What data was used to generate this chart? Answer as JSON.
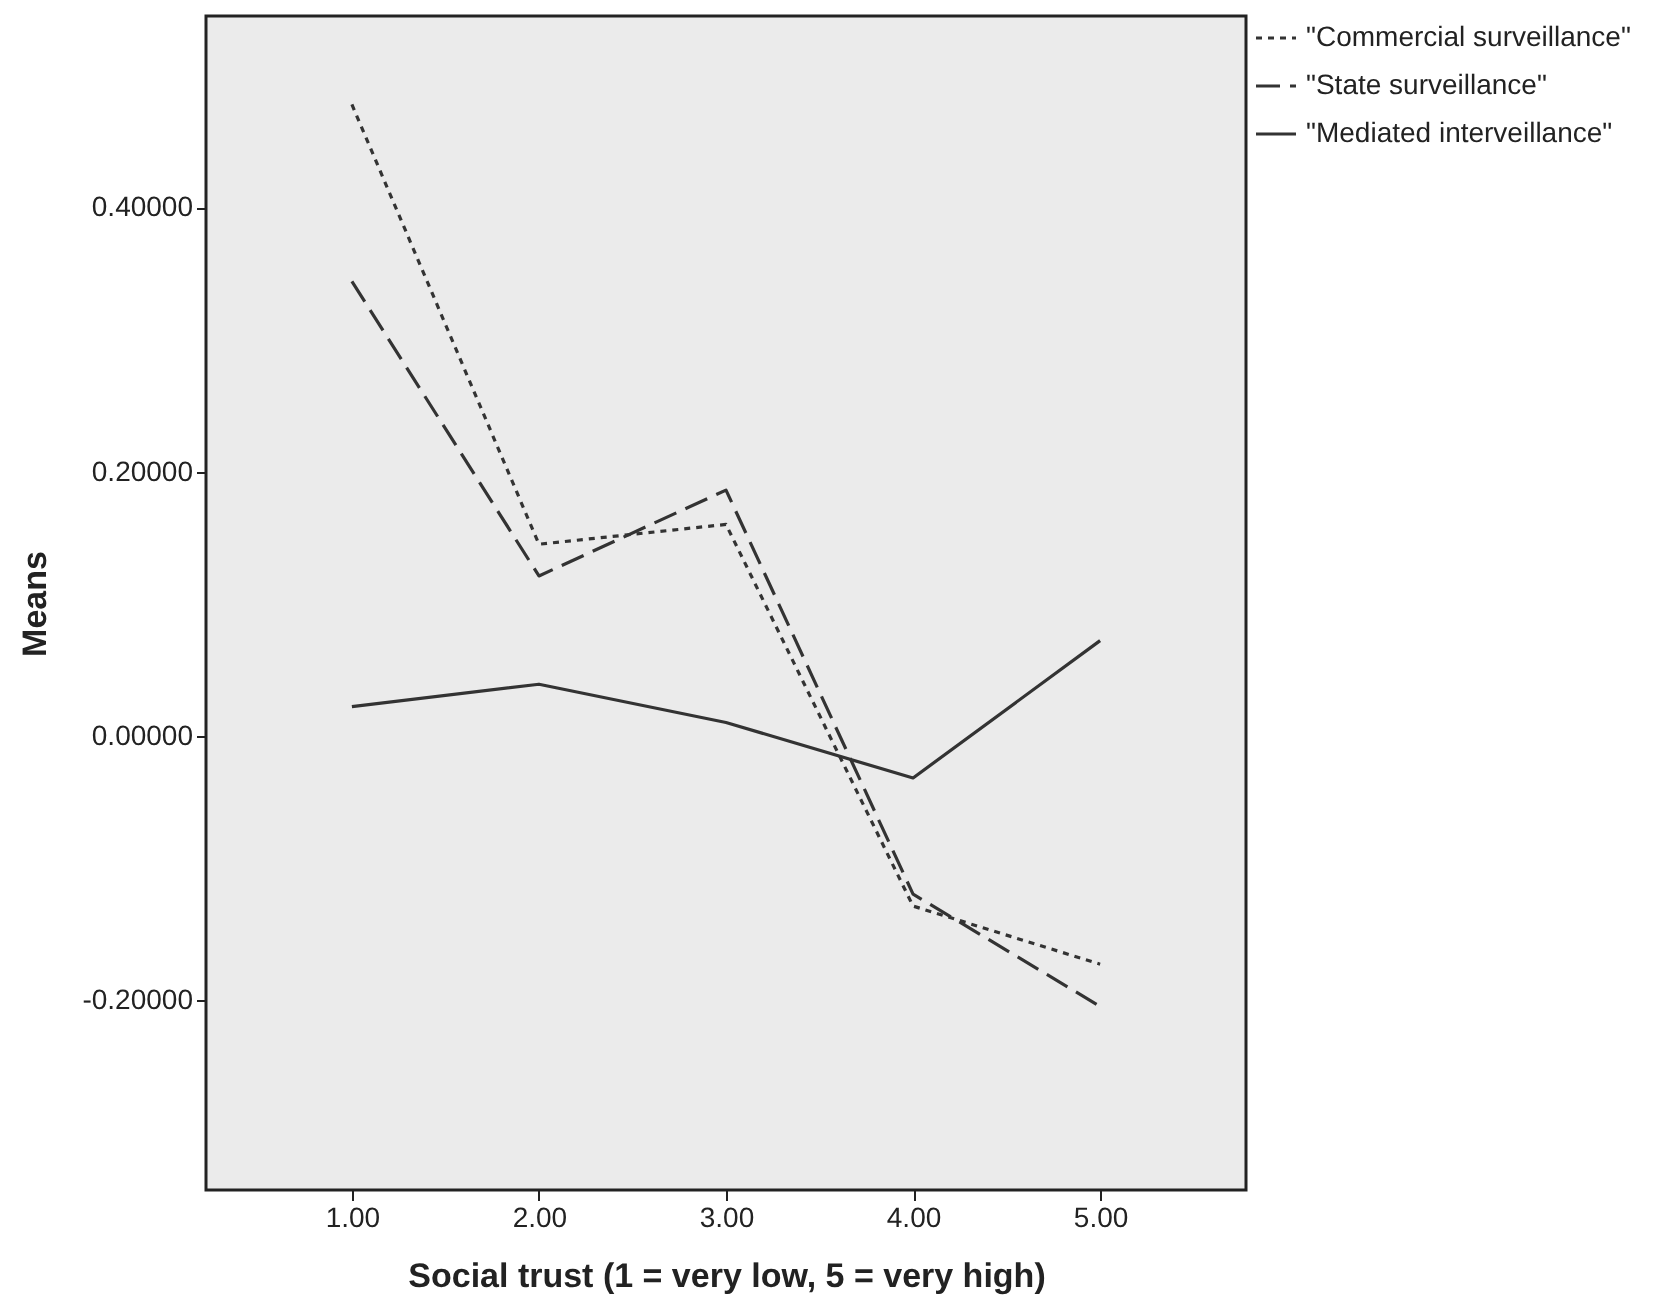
{
  "chart_data": {
    "type": "line",
    "xlabel": "Social trust (1 = very low, 5 = very high)",
    "ylabel": "Means",
    "x": [
      1,
      2,
      3,
      4,
      5
    ],
    "series": [
      {
        "name": "\"Commercial surveillance\"",
        "color": "#333333",
        "line_style": "dotted",
        "values": [
          0.478,
          0.145,
          0.16,
          -0.129,
          -0.173
        ]
      },
      {
        "name": "\"State surveillance\"",
        "color": "#333333",
        "line_style": "dashed",
        "values": [
          0.344,
          0.121,
          0.186,
          -0.12,
          -0.205
        ]
      },
      {
        "name": "\"Mediated interveillance\"",
        "color": "#333333",
        "line_style": "solid",
        "values": [
          0.022,
          0.039,
          0.01,
          -0.032,
          0.072
        ]
      }
    ],
    "xlim": [
      0.22,
      5.78
    ],
    "xticks": [
      {
        "value": 1,
        "label": "1.00"
      },
      {
        "value": 2,
        "label": "2.00"
      },
      {
        "value": 3,
        "label": "3.00"
      },
      {
        "value": 4,
        "label": "4.00"
      },
      {
        "value": 5,
        "label": "5.00"
      }
    ],
    "ylim": [
      -0.344,
      0.545
    ],
    "yticks": [
      {
        "value": -0.2,
        "label": "-0.20000"
      },
      {
        "value": 0,
        "label": "0.00000"
      },
      {
        "value": 0.2,
        "label": "0.20000"
      },
      {
        "value": 0.4,
        "label": "0.40000"
      }
    ],
    "grid": false,
    "legend": "top right",
    "marker": "none"
  }
}
